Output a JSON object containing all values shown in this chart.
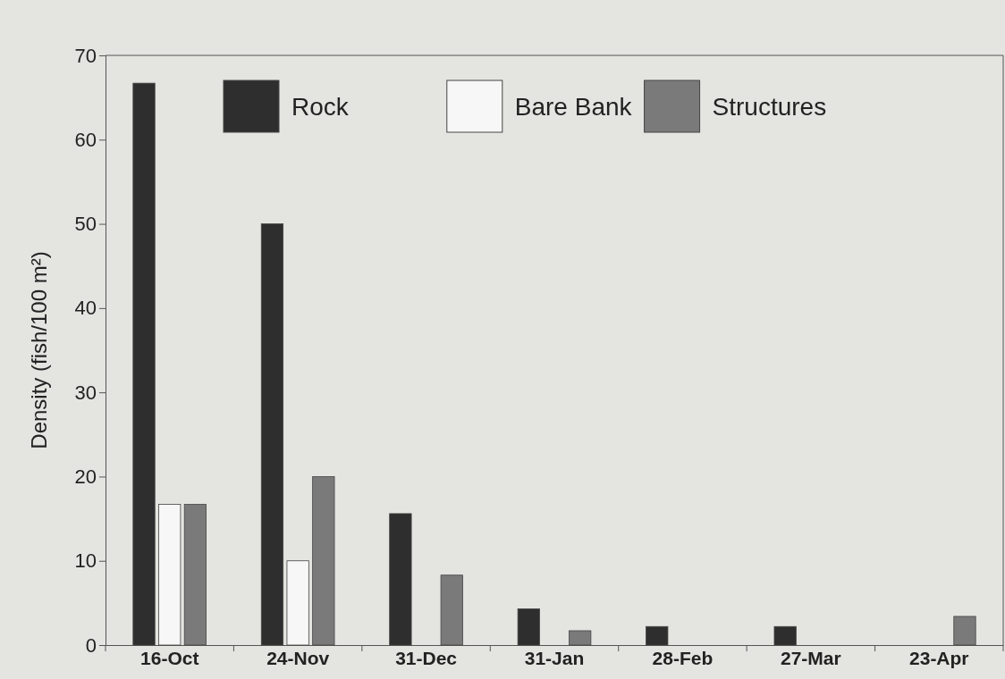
{
  "chart_data": {
    "type": "bar",
    "ylabel": "Density (fish/100 m²)",
    "categories": [
      "16-Oct",
      "24-Nov",
      "31-Dec",
      "31-Jan",
      "28-Feb",
      "27-Mar",
      "23-Apr"
    ],
    "series": [
      {
        "name": "Rock",
        "color": "#2e2e2e",
        "values": [
          66.7,
          50,
          15.6,
          4.3,
          2.2,
          2.2,
          0
        ]
      },
      {
        "name": "Bare Bank",
        "color": "#f7f7f7",
        "values": [
          16.7,
          10,
          0,
          0,
          0,
          0,
          0
        ]
      },
      {
        "name": "Structures",
        "color": "#7a7a7a",
        "values": [
          16.7,
          20,
          8.3,
          1.7,
          0,
          0,
          3.4
        ]
      }
    ],
    "ylim": [
      0,
      70
    ],
    "yticks": [
      0,
      10,
      20,
      30,
      40,
      50,
      60,
      70
    ],
    "grid": false,
    "legend": "top"
  }
}
